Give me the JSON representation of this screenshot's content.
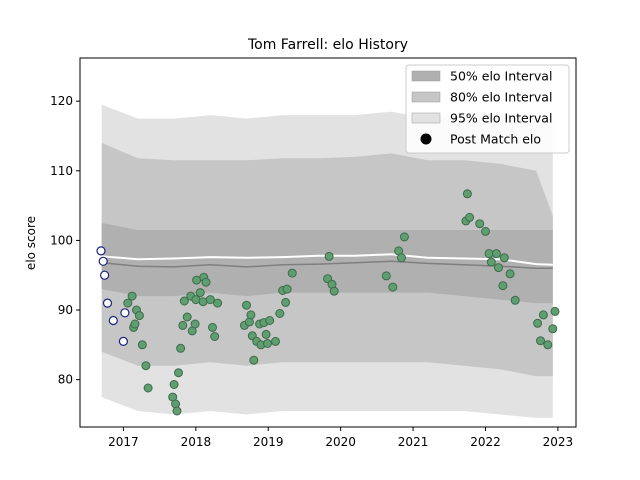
{
  "chart_data": {
    "type": "scatter",
    "title": "Tom Farrell: elo History",
    "xlabel": "",
    "ylabel": "elo score",
    "xlim": [
      2016.4,
      2023.25
    ],
    "ylim": [
      73.2,
      126.2
    ],
    "x_ticks": [
      2017,
      2018,
      2019,
      2020,
      2021,
      2022,
      2023
    ],
    "x_tick_labels": [
      "2017",
      "2018",
      "2019",
      "2020",
      "2021",
      "2022",
      "2023"
    ],
    "y_ticks": [
      80,
      90,
      100,
      110,
      120
    ],
    "y_tick_labels": [
      "80",
      "90",
      "100",
      "110",
      "120"
    ],
    "grid": false,
    "legend_position": "top-right",
    "legend": [
      {
        "label": "50% elo Interval",
        "kind": "band50"
      },
      {
        "label": "80% elo Interval",
        "kind": "band80"
      },
      {
        "label": "95% elo Interval",
        "kind": "band95"
      },
      {
        "label": "Post Match elo",
        "kind": "marker"
      }
    ],
    "colors": {
      "band50": "#b0b0b0",
      "band80": "#c6c6c6",
      "band95": "#e2e2e2",
      "median_line": "#7f7f7f",
      "mean_line": "#ffffff",
      "point_green": "#5f9e70",
      "point_edge_green": "#3d6b4a",
      "point_blue_fill": "#ffffff",
      "point_blue_edge": "#1a237e"
    },
    "bands": {
      "x": [
        2016.7,
        2017.2,
        2017.7,
        2018.2,
        2018.7,
        2019.2,
        2019.7,
        2020.2,
        2020.7,
        2021.2,
        2021.7,
        2022.2,
        2022.7,
        2022.93
      ],
      "p975": [
        119.5,
        117.5,
        117.5,
        118.0,
        117.5,
        118.0,
        118.0,
        118.0,
        118.5,
        117.5,
        118.0,
        118.5,
        117.5,
        117.5
      ],
      "p90": [
        114.0,
        111.8,
        111.5,
        111.5,
        111.5,
        111.8,
        111.8,
        112.0,
        112.5,
        111.5,
        111.5,
        111.0,
        110.0,
        103.5
      ],
      "p75": [
        102.5,
        101.5,
        101.5,
        101.5,
        101.5,
        101.5,
        101.5,
        101.5,
        101.5,
        101.5,
        101.5,
        101.5,
        101.5,
        101.5
      ],
      "p25": [
        93.0,
        92.0,
        92.0,
        92.5,
        92.0,
        92.5,
        92.5,
        92.5,
        92.5,
        92.5,
        92.0,
        91.5,
        91.0,
        91.0
      ],
      "p10": [
        84.0,
        82.0,
        82.0,
        82.5,
        82.0,
        82.5,
        82.5,
        82.5,
        82.5,
        82.5,
        82.0,
        81.5,
        80.5,
        80.5
      ],
      "p025": [
        77.5,
        75.5,
        75.0,
        75.5,
        75.0,
        75.5,
        75.5,
        75.5,
        75.5,
        75.5,
        75.5,
        75.0,
        74.5,
        74.5
      ],
      "median": [
        96.8,
        96.3,
        96.2,
        96.5,
        96.2,
        96.5,
        96.6,
        96.8,
        97.0,
        96.7,
        96.5,
        96.3,
        96.0,
        96.0
      ],
      "mean": [
        97.7,
        97.3,
        97.4,
        97.6,
        97.5,
        97.6,
        97.8,
        97.8,
        98.0,
        97.5,
        97.4,
        97.3,
        96.6,
        96.5
      ]
    },
    "points_blue": [
      [
        2016.69,
        98.5
      ],
      [
        2016.72,
        97.0
      ],
      [
        2016.74,
        95.0
      ],
      [
        2016.78,
        91.0
      ],
      [
        2016.86,
        88.5
      ],
      [
        2017.0,
        85.5
      ],
      [
        2017.02,
        89.6
      ]
    ],
    "points_green": [
      [
        2017.06,
        91.0
      ],
      [
        2017.12,
        92.0
      ],
      [
        2017.14,
        87.5
      ],
      [
        2017.16,
        88.0
      ],
      [
        2017.18,
        90.0
      ],
      [
        2017.22,
        89.2
      ],
      [
        2017.26,
        85.0
      ],
      [
        2017.31,
        82.0
      ],
      [
        2017.34,
        78.8
      ],
      [
        2017.68,
        77.5
      ],
      [
        2017.7,
        79.3
      ],
      [
        2017.72,
        76.5
      ],
      [
        2017.74,
        75.5
      ],
      [
        2017.76,
        81.0
      ],
      [
        2017.79,
        84.5
      ],
      [
        2017.82,
        87.8
      ],
      [
        2017.84,
        91.3
      ],
      [
        2017.88,
        89.0
      ],
      [
        2017.93,
        92.0
      ],
      [
        2017.95,
        87.0
      ],
      [
        2017.99,
        88.0
      ],
      [
        2018.0,
        91.5
      ],
      [
        2018.01,
        94.3
      ],
      [
        2018.06,
        92.5
      ],
      [
        2018.1,
        91.2
      ],
      [
        2018.11,
        94.7
      ],
      [
        2018.14,
        94.0
      ],
      [
        2018.2,
        91.5
      ],
      [
        2018.23,
        87.5
      ],
      [
        2018.26,
        86.2
      ],
      [
        2018.3,
        91.0
      ],
      [
        2018.67,
        87.8
      ],
      [
        2018.7,
        90.7
      ],
      [
        2018.74,
        88.3
      ],
      [
        2018.76,
        89.3
      ],
      [
        2018.78,
        86.3
      ],
      [
        2018.8,
        82.8
      ],
      [
        2018.84,
        85.5
      ],
      [
        2018.88,
        88.0
      ],
      [
        2018.9,
        85.0
      ],
      [
        2018.94,
        88.2
      ],
      [
        2018.97,
        86.5
      ],
      [
        2018.99,
        85.2
      ],
      [
        2019.02,
        88.5
      ],
      [
        2019.1,
        85.5
      ],
      [
        2019.16,
        89.5
      ],
      [
        2019.2,
        92.8
      ],
      [
        2019.24,
        91.1
      ],
      [
        2019.26,
        93.0
      ],
      [
        2019.33,
        95.3
      ],
      [
        2019.82,
        94.5
      ],
      [
        2019.84,
        97.7
      ],
      [
        2019.88,
        93.7
      ],
      [
        2019.91,
        92.7
      ],
      [
        2020.63,
        94.9
      ],
      [
        2020.72,
        93.3
      ],
      [
        2020.8,
        98.5
      ],
      [
        2020.84,
        97.5
      ],
      [
        2020.88,
        100.5
      ],
      [
        2021.73,
        102.8
      ],
      [
        2021.75,
        106.7
      ],
      [
        2021.78,
        103.3
      ],
      [
        2021.92,
        102.4
      ],
      [
        2022.0,
        101.3
      ],
      [
        2022.05,
        98.1
      ],
      [
        2022.08,
        96.9
      ],
      [
        2022.15,
        98.1
      ],
      [
        2022.18,
        96.1
      ],
      [
        2022.24,
        93.5
      ],
      [
        2022.26,
        97.5
      ],
      [
        2022.34,
        95.2
      ],
      [
        2022.41,
        91.4
      ],
      [
        2022.72,
        88.1
      ],
      [
        2022.76,
        85.6
      ],
      [
        2022.8,
        89.3
      ],
      [
        2022.86,
        85.0
      ],
      [
        2022.93,
        87.3
      ],
      [
        2022.96,
        89.8
      ]
    ]
  }
}
